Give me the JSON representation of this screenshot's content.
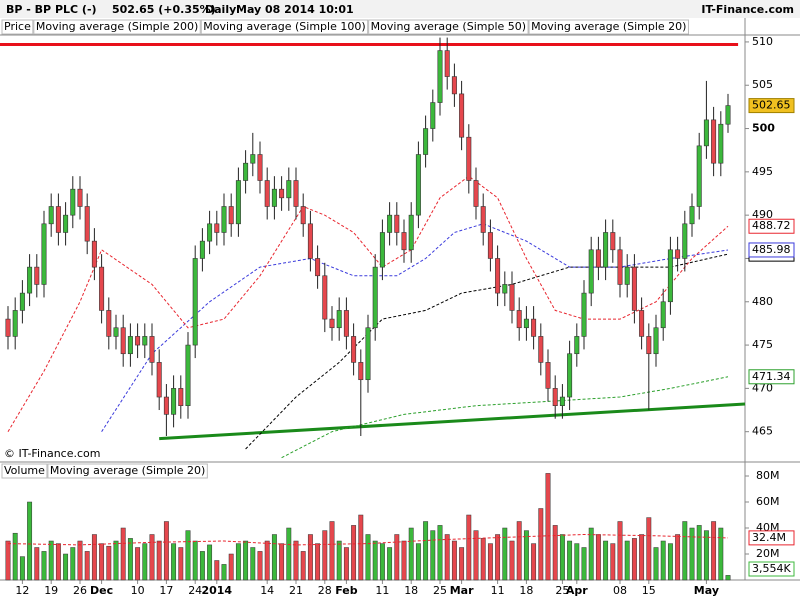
{
  "chart_data": [
    {
      "type": "candlestick",
      "title": "BP - BP PLC (-)",
      "quote": "502.65 (+0.35%)",
      "period": "Daily",
      "date": "May 08 2014 10:01",
      "source": "IT-Finance.com",
      "copyright": "© IT-Finance.com",
      "legend_label": "Price",
      "categories": [
        null,
        null,
        "12",
        null,
        null,
        null,
        "19",
        null,
        null,
        null,
        "26",
        null,
        null,
        "Dec",
        null,
        null,
        null,
        null,
        "10",
        null,
        null,
        null,
        "17",
        null,
        null,
        null,
        "24",
        null,
        null,
        "2014",
        null,
        null,
        null,
        null,
        null,
        null,
        "14",
        null,
        null,
        null,
        "21",
        null,
        null,
        null,
        "28",
        null,
        null,
        "Feb",
        null,
        null,
        null,
        null,
        "11",
        null,
        null,
        null,
        "18",
        null,
        null,
        null,
        "25",
        null,
        null,
        "Mar",
        null,
        null,
        null,
        null,
        "11",
        null,
        null,
        null,
        "18",
        null,
        null,
        null,
        null,
        "25",
        null,
        "Apr",
        null,
        null,
        null,
        null,
        null,
        "08",
        null,
        null,
        null,
        "15",
        null,
        null,
        null,
        null,
        null,
        null,
        null,
        "May",
        null,
        null,
        null
      ],
      "open": [
        478,
        476,
        479,
        481,
        484,
        482,
        489,
        491,
        488,
        490,
        493,
        491,
        487,
        484,
        479,
        476,
        477,
        474,
        476,
        475,
        476,
        473,
        469,
        467,
        470,
        468,
        475,
        485,
        487,
        489,
        488,
        491,
        489,
        494,
        496,
        497,
        494,
        491,
        493,
        492,
        494,
        491,
        489,
        485,
        483,
        478,
        477,
        479,
        476,
        473,
        471,
        477,
        484,
        488,
        490,
        488,
        486,
        490,
        497,
        500,
        503,
        509,
        506,
        504,
        499,
        494,
        491,
        488,
        485,
        481,
        482,
        479,
        477,
        478,
        476,
        473,
        470,
        468,
        469,
        474,
        476,
        481,
        486,
        484,
        488,
        486,
        482,
        484,
        479,
        476,
        474,
        477,
        480,
        486,
        485,
        489,
        491,
        498,
        501,
        496,
        500.5
      ],
      "high": [
        479.5,
        480.5,
        482.5,
        485.5,
        485.5,
        490.5,
        492.5,
        492.5,
        491.5,
        494.5,
        494.5,
        492.5,
        488.5,
        485.5,
        480.5,
        478.5,
        478.5,
        477.5,
        477.5,
        477.5,
        477.5,
        474.5,
        470.5,
        471.5,
        471.5,
        476.5,
        486.5,
        488.5,
        490.5,
        490.5,
        492.5,
        492.5,
        495.5,
        497.5,
        499.5,
        498.5,
        495.5,
        494.5,
        494.5,
        495.5,
        495.5,
        492.5,
        490.5,
        486.5,
        484.5,
        479.5,
        480.5,
        480.5,
        477.5,
        474.5,
        478.5,
        485.5,
        489.5,
        491.5,
        491.5,
        489.5,
        491.5,
        498.5,
        501.5,
        504.5,
        510.5,
        510.5,
        507.5,
        505.5,
        500.5,
        495.5,
        492.5,
        489.5,
        486.5,
        483.5,
        483.5,
        480.5,
        479.5,
        479.5,
        477.5,
        474.5,
        471.5,
        470.5,
        475.5,
        477.5,
        482.5,
        487.5,
        487.5,
        489.5,
        489.5,
        487.5,
        485.5,
        485.5,
        480.5,
        477.5,
        478.5,
        481.5,
        487.5,
        487.5,
        490.5,
        492.5,
        499.5,
        505.5,
        502.5,
        502,
        504
      ],
      "low": [
        474.5,
        474.5,
        477.5,
        479.5,
        480.5,
        480.5,
        487.5,
        486.5,
        486.5,
        488.5,
        489.5,
        485.5,
        482.5,
        477.5,
        474.5,
        474.5,
        472.5,
        472.5,
        473.5,
        473.5,
        471.5,
        467.5,
        464.5,
        465.5,
        466.5,
        466.5,
        473.5,
        483.5,
        485.5,
        486.5,
        486.5,
        487.5,
        487.5,
        492.5,
        494.5,
        492.5,
        489.5,
        489.5,
        490.5,
        490.5,
        489.5,
        487.5,
        483.5,
        481.5,
        476.5,
        475.5,
        475.5,
        474.5,
        471.5,
        464.5,
        469.5,
        475.5,
        482.5,
        486.5,
        486.5,
        484.5,
        484.5,
        488.5,
        495.5,
        498.5,
        501.5,
        504.5,
        502.5,
        497.5,
        492.5,
        489.5,
        486.5,
        483.5,
        479.5,
        479.5,
        477.5,
        475.5,
        475.5,
        474.5,
        471.5,
        468.5,
        466.5,
        466.5,
        467.5,
        472.5,
        474.5,
        479.5,
        482.5,
        482.5,
        484.5,
        480.5,
        480.5,
        477.5,
        474.5,
        467.5,
        472.5,
        475.5,
        478.5,
        483.5,
        483.5,
        487.5,
        489.5,
        496.5,
        494.5,
        494.5,
        499.5
      ],
      "close": [
        476,
        479,
        481,
        484,
        482,
        489,
        491,
        488,
        490,
        493,
        491,
        487,
        484,
        479,
        476,
        477,
        474,
        476,
        475,
        476,
        473,
        469,
        467,
        470,
        468,
        475,
        485,
        487,
        489,
        488,
        491,
        489,
        494,
        496,
        497,
        494,
        491,
        493,
        492,
        494,
        491,
        489,
        485,
        483,
        478,
        477,
        479,
        476,
        473,
        471,
        477,
        484,
        488,
        490,
        488,
        486,
        490,
        497,
        500,
        503,
        509,
        506,
        504,
        499,
        494,
        491,
        488,
        485,
        481,
        482,
        479,
        477,
        478,
        476,
        473,
        470,
        468,
        469,
        474,
        476,
        481,
        486,
        484,
        488,
        486,
        482,
        484,
        479,
        476,
        474,
        477,
        480,
        486,
        485,
        489,
        491,
        498,
        501,
        496,
        500.5,
        502.65
      ],
      "up_color": "#3cb83c",
      "down_color": "#e5474d",
      "last_color": "#f0c020",
      "xlim": [
        -1.11,
        102.36
      ],
      "ylim": [
        461.5,
        510.8
      ],
      "yticks": [
        465,
        470,
        475,
        480,
        485,
        490,
        495,
        500,
        505,
        510
      ],
      "series": [
        {
          "name": "Moving average (Simple 200)",
          "color": "#2ca02c",
          "x": [
            38,
            45,
            55,
            65,
            75,
            85,
            92,
            100
          ],
          "values": [
            462,
            465,
            467,
            468,
            468.5,
            469,
            470,
            471.34
          ]
        },
        {
          "name": "Moving average (Simple 100)",
          "color": "#000000",
          "x": [
            33,
            40,
            46,
            52,
            58,
            63,
            70,
            78,
            85,
            92,
            100
          ],
          "values": [
            463,
            469,
            473,
            478,
            479,
            481,
            482,
            484,
            484,
            484,
            485.5
          ]
        },
        {
          "name": "Moving average (Simple 50)",
          "color": "#3b3bdc",
          "x": [
            13,
            20,
            28,
            35,
            42,
            48,
            54,
            58,
            62,
            66,
            72,
            78,
            85,
            92,
            100
          ],
          "values": [
            465,
            474,
            480,
            484,
            485,
            483,
            483,
            485,
            488,
            489,
            487,
            484,
            484,
            485,
            485.98
          ]
        },
        {
          "name": "Moving average (Simple 20)",
          "color": "#e8262f",
          "x": [
            0,
            5,
            10,
            13,
            20,
            25,
            30,
            35,
            41,
            44,
            48,
            52,
            56,
            60,
            64,
            68,
            72,
            76,
            80,
            85,
            90,
            95,
            100
          ],
          "values": [
            465,
            472,
            480,
            486,
            482,
            477,
            478,
            483,
            491,
            490,
            488,
            484,
            486,
            492,
            494.5,
            492,
            485,
            479,
            478,
            478,
            480,
            485,
            488.72
          ]
        }
      ],
      "trendlines": [
        {
          "color": "#e8101a",
          "x": [
            -1.11,
            101.4
          ],
          "values": [
            509.7,
            509.7
          ]
        },
        {
          "color": "#1a8a1a",
          "x": [
            21,
            102.36
          ],
          "values": [
            464.2,
            468.2
          ]
        }
      ]
    },
    {
      "type": "bar",
      "legend_label": "Volume",
      "values": [
        30,
        36,
        18,
        60,
        25,
        22,
        30,
        28,
        20,
        25,
        30,
        22,
        35,
        28,
        26,
        30,
        40,
        32,
        25,
        28,
        35,
        30,
        45,
        28,
        25,
        38,
        30,
        22,
        27,
        15,
        12,
        20,
        28,
        30,
        25,
        22,
        30,
        35,
        28,
        40,
        30,
        22,
        35,
        28,
        38,
        45,
        30,
        25,
        42,
        50,
        35,
        30,
        28,
        25,
        35,
        30,
        40,
        28,
        45,
        38,
        42,
        35,
        30,
        25,
        50,
        38,
        32,
        28,
        35,
        40,
        30,
        45,
        38,
        28,
        55,
        82,
        42,
        35,
        30,
        28,
        25,
        40,
        35,
        30,
        28,
        45,
        30,
        32,
        35,
        48,
        25,
        30,
        28,
        35,
        45,
        40,
        42,
        38,
        45,
        40,
        3.554
      ],
      "last_value_label": "3,554K",
      "ylim": [
        0,
        90
      ],
      "yticks": [
        {
          "value": 20,
          "label": "20M"
        },
        {
          "value": 40,
          "label": "40M"
        },
        {
          "value": 60,
          "label": "60M"
        },
        {
          "value": 80,
          "label": "80M"
        }
      ],
      "series": [
        {
          "name": "Moving average (Simple 20)",
          "color": "#e8262f",
          "x": [
            0,
            10,
            20,
            30,
            40,
            50,
            60,
            70,
            80,
            90,
            100
          ],
          "values": [
            28,
            27,
            29,
            30,
            27,
            28,
            31,
            33,
            35,
            34,
            32.4
          ],
          "last_value_label": "32.4M"
        }
      ]
    }
  ]
}
